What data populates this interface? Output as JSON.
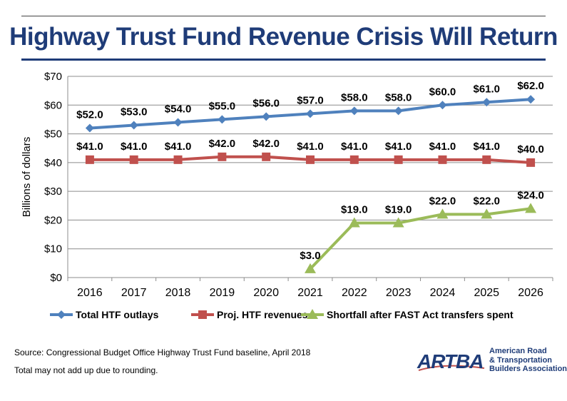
{
  "title": "Highway Trust Fund Revenue Crisis Will Return",
  "source": "Source: Congressional Budget Office Highway Trust Fund baseline, April 2018",
  "note": "Total may not add up due to rounding.",
  "logo": {
    "mark": "ARTBA",
    "lines": [
      "American Road",
      "& Transportation",
      "Builders Association"
    ]
  },
  "colors": {
    "title": "#1f3c78",
    "outlays": "#4f81bd",
    "revenues": "#c0504d",
    "shortfall": "#9bbb59"
  },
  "chart_data": {
    "type": "line",
    "ylabel": "Billions of dollars",
    "xlabel": "",
    "ylim": [
      0,
      70
    ],
    "yticks": [
      "$0",
      "$10",
      "$20",
      "$30",
      "$40",
      "$50",
      "$60",
      "$70"
    ],
    "ytick_values": [
      0,
      10,
      20,
      30,
      40,
      50,
      60,
      70
    ],
    "grid": true,
    "legend": "bottom",
    "categories": [
      "2016",
      "2017",
      "2018",
      "2019",
      "2020",
      "2021",
      "2022",
      "2023",
      "2024",
      "2025",
      "2026"
    ],
    "series": [
      {
        "name": "Total HTF outlays",
        "marker": "diamond",
        "values": [
          52,
          53,
          54,
          55,
          56,
          57,
          58,
          58,
          60,
          61,
          62
        ],
        "labels": [
          "$52.0",
          "$53.0",
          "$54.0",
          "$55.0",
          "$56.0",
          "$57.0",
          "$58.0",
          "$58.0",
          "$60.0",
          "$61.0",
          "$62.0"
        ]
      },
      {
        "name": "Proj. HTF revenues",
        "marker": "square",
        "values": [
          41,
          41,
          41,
          42,
          42,
          41,
          41,
          41,
          41,
          41,
          40
        ],
        "labels": [
          "$41.0",
          "$41.0",
          "$41.0",
          "$42.0",
          "$42.0",
          "$41.0",
          "$41.0",
          "$41.0",
          "$41.0",
          "$41.0",
          "$40.0"
        ]
      },
      {
        "name": "Shortfall after FAST Act transfers spent",
        "marker": "triangle",
        "values": [
          null,
          null,
          null,
          null,
          null,
          3,
          19,
          19,
          22,
          22,
          24
        ],
        "labels": [
          null,
          null,
          null,
          null,
          null,
          "$3.0",
          "$19.0",
          "$19.0",
          "$22.0",
          "$22.0",
          "$24.0"
        ]
      }
    ]
  }
}
